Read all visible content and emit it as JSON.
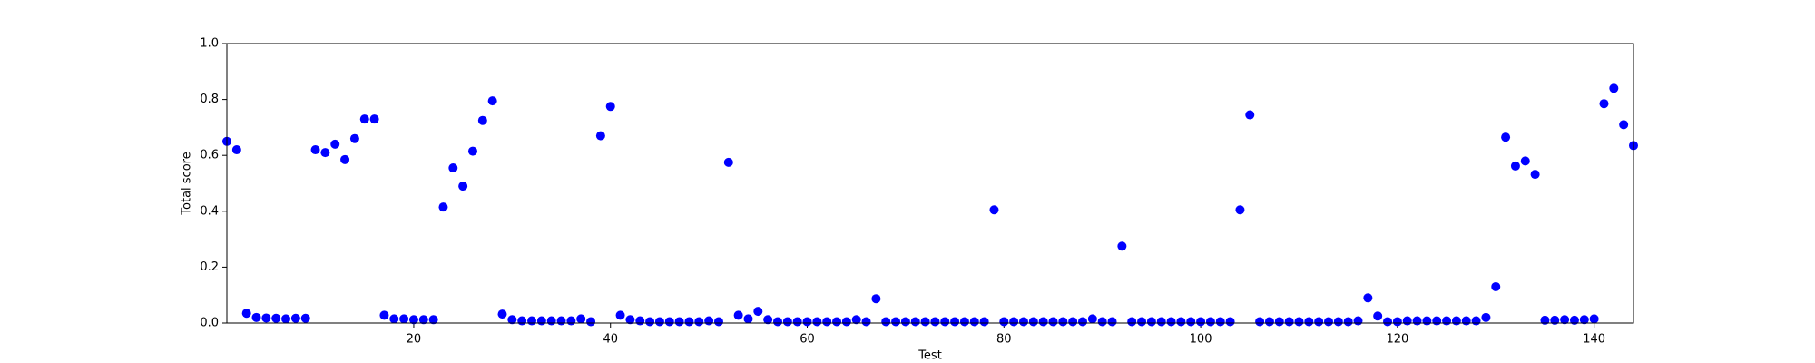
{
  "chart_data": {
    "type": "scatter",
    "x_label": "Test",
    "y_label": "Total score",
    "color": "#0000ff",
    "x": [
      1,
      2,
      3,
      4,
      5,
      6,
      7,
      8,
      9,
      10,
      11,
      12,
      13,
      14,
      15,
      16,
      17,
      18,
      19,
      20,
      21,
      22,
      23,
      24,
      25,
      26,
      27,
      28,
      29,
      30,
      31,
      32,
      33,
      34,
      35,
      36,
      37,
      38,
      39,
      40,
      41,
      42,
      43,
      44,
      45,
      46,
      47,
      48,
      49,
      50,
      51,
      52,
      53,
      54,
      55,
      56,
      57,
      58,
      59,
      60,
      61,
      62,
      63,
      64,
      65,
      66,
      67,
      68,
      69,
      70,
      71,
      72,
      73,
      74,
      75,
      76,
      77,
      78,
      79,
      80,
      81,
      82,
      83,
      84,
      85,
      86,
      87,
      88,
      89,
      90,
      91,
      92,
      93,
      94,
      95,
      96,
      97,
      98,
      99,
      100,
      101,
      102,
      103,
      104,
      105,
      106,
      107,
      108,
      109,
      110,
      111,
      112,
      113,
      114,
      115,
      116,
      117,
      118,
      119,
      120,
      121,
      122,
      123,
      124,
      125,
      126,
      127,
      128,
      129,
      130,
      131,
      132,
      133,
      134,
      135,
      136,
      137,
      138,
      139,
      140,
      141,
      142,
      143,
      144
    ],
    "values": [
      0.65,
      0.62,
      0.035,
      0.02,
      0.018,
      0.017,
      0.015,
      0.017,
      0.017,
      0.62,
      0.61,
      0.64,
      0.585,
      0.66,
      0.73,
      0.73,
      0.028,
      0.015,
      0.015,
      0.012,
      0.012,
      0.012,
      0.415,
      0.555,
      0.49,
      0.615,
      0.725,
      0.795,
      0.032,
      0.012,
      0.008,
      0.008,
      0.008,
      0.008,
      0.008,
      0.008,
      0.015,
      0.005,
      0.67,
      0.775,
      0.028,
      0.012,
      0.008,
      0.005,
      0.005,
      0.005,
      0.005,
      0.005,
      0.005,
      0.008,
      0.005,
      0.575,
      0.028,
      0.015,
      0.042,
      0.012,
      0.005,
      0.005,
      0.005,
      0.005,
      0.005,
      0.005,
      0.005,
      0.005,
      0.012,
      0.005,
      0.087,
      0.005,
      0.005,
      0.005,
      0.005,
      0.005,
      0.005,
      0.005,
      0.005,
      0.005,
      0.005,
      0.005,
      0.405,
      0.005,
      0.005,
      0.005,
      0.005,
      0.005,
      0.005,
      0.005,
      0.005,
      0.005,
      0.015,
      0.005,
      0.005,
      0.275,
      0.005,
      0.005,
      0.005,
      0.005,
      0.005,
      0.005,
      0.005,
      0.005,
      0.005,
      0.005,
      0.005,
      0.405,
      0.745,
      0.005,
      0.005,
      0.005,
      0.005,
      0.005,
      0.005,
      0.005,
      0.005,
      0.005,
      0.005,
      0.008,
      0.09,
      0.025,
      0.005,
      0.005,
      0.008,
      0.008,
      0.008,
      0.008,
      0.008,
      0.008,
      0.008,
      0.008,
      0.02,
      0.13,
      0.665,
      0.562,
      0.58,
      0.532,
      0.01,
      0.01,
      0.012,
      0.01,
      0.012,
      0.015,
      0.785,
      0.84,
      0.71,
      0.635
    ],
    "xlim": [
      1,
      144
    ],
    "ylim": [
      0,
      1
    ],
    "xticks": [
      20,
      40,
      60,
      80,
      100,
      120,
      140
    ],
    "yticks": [
      {
        "value": 0,
        "label": "0.0"
      },
      0.2,
      0.4,
      0.6,
      0.8,
      {
        "value": 1,
        "label": "1.0"
      }
    ]
  }
}
